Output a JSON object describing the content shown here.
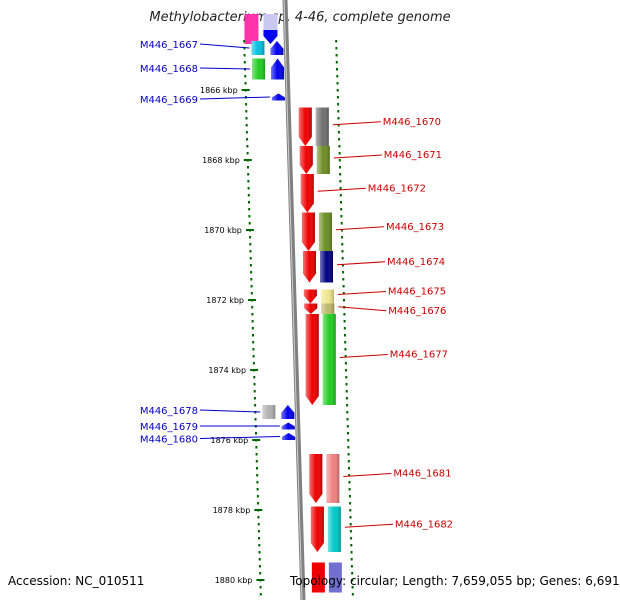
{
  "title": "Methylobacterium sp. 4-46, complete genome",
  "footer": {
    "accession": "Accession: NC_010511",
    "summary": "Topology: circular; Length: 7,659,055 bp; Genes: 6,691"
  },
  "colors": {
    "reverse_label": "#0000cc",
    "forward_label": "#cc0000",
    "backbone": "#808080",
    "tick": "#006600"
  },
  "ticks": [
    {
      "kbp": 1866,
      "label": "1866 kbp"
    },
    {
      "kbp": 1868,
      "label": "1868 kbp"
    },
    {
      "kbp": 1870,
      "label": "1870 kbp"
    },
    {
      "kbp": 1872,
      "label": "1872 kbp"
    },
    {
      "kbp": 1874,
      "label": "1874 kbp"
    },
    {
      "kbp": 1876,
      "label": "1876 kbp"
    },
    {
      "kbp": 1878,
      "label": "1878 kbp"
    },
    {
      "kbp": 1880,
      "label": "1880 kbp"
    }
  ],
  "genes_reverse": [
    {
      "name": "M446_1667",
      "start": 1864.6,
      "end": 1865.0,
      "cog": "#00bfe0"
    },
    {
      "name": "M446_1668",
      "start": 1865.1,
      "end": 1865.7,
      "cog": "#22cc22"
    },
    {
      "name": "M446_1669",
      "start": 1866.1,
      "end": 1866.3,
      "cog": ""
    },
    {
      "name": "M446_1678",
      "start": 1875.0,
      "end": 1875.4,
      "cog": "#b0b0b0"
    },
    {
      "name": "M446_1679",
      "start": 1875.5,
      "end": 1875.7,
      "cog": ""
    },
    {
      "name": "M446_1680",
      "start": 1875.8,
      "end": 1876.0,
      "cog": ""
    }
  ],
  "genes_forward": [
    {
      "name": "M446_1670",
      "start": 1866.5,
      "end": 1867.6,
      "cog": "#707070"
    },
    {
      "name": "M446_1671",
      "start": 1867.6,
      "end": 1868.4,
      "cog": "#6b8e23"
    },
    {
      "name": "M446_1672",
      "start": 1868.4,
      "end": 1869.5,
      "cog": ""
    },
    {
      "name": "M446_1673",
      "start": 1869.5,
      "end": 1870.6,
      "cog": "#6b8e23"
    },
    {
      "name": "M446_1674",
      "start": 1870.6,
      "end": 1871.5,
      "cog": "#000080"
    },
    {
      "name": "M446_1675",
      "start": 1871.7,
      "end": 1872.1,
      "cog": "#f0e68c"
    },
    {
      "name": "M446_1676",
      "start": 1872.1,
      "end": 1872.4,
      "cog": "#bdb76b"
    },
    {
      "name": "M446_1677",
      "start": 1872.4,
      "end": 1875.0,
      "cog": "#22cc22"
    },
    {
      "name": "M446_1681",
      "start": 1876.4,
      "end": 1877.8,
      "cog": "#f08080"
    },
    {
      "name": "M446_1682",
      "start": 1877.9,
      "end": 1879.2,
      "cog": "#00c8c8"
    }
  ]
}
